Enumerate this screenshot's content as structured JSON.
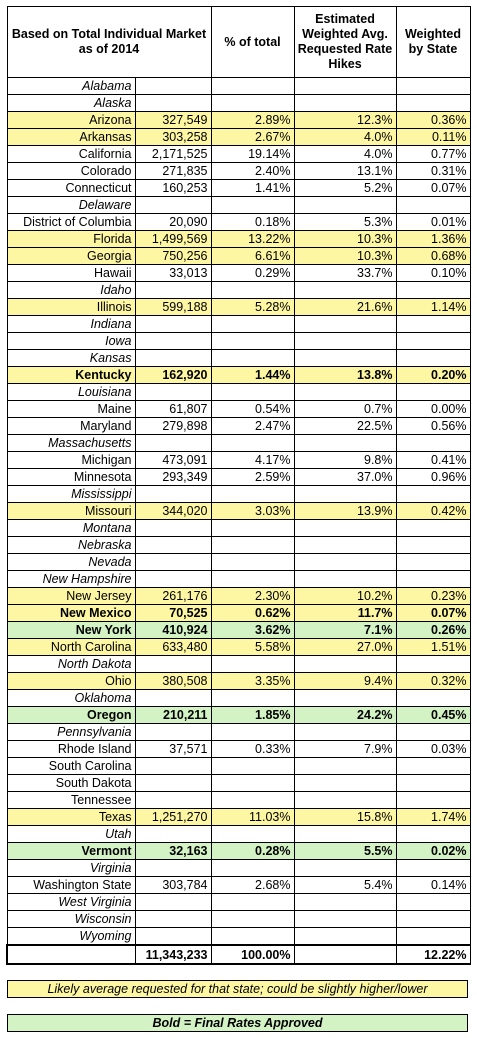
{
  "headers": {
    "state": "Based on Total Individual Market as of 2014",
    "pct_total": "% of total",
    "weighted_avg": "Estimated Weighted Avg. Requested Rate Hikes",
    "weighted_state": "Weighted by State"
  },
  "rows": [
    {
      "state": "Alabama",
      "market": "",
      "pct": "",
      "hike": "",
      "weighted": "",
      "style": "italic"
    },
    {
      "state": "Alaska",
      "market": "",
      "pct": "",
      "hike": "",
      "weighted": "",
      "style": "italic"
    },
    {
      "state": "Arizona",
      "market": "327,549",
      "pct": "2.89%",
      "hike": "12.3%",
      "weighted": "0.36%",
      "style": "yellow"
    },
    {
      "state": "Arkansas",
      "market": "303,258",
      "pct": "2.67%",
      "hike": "4.0%",
      "weighted": "0.11%",
      "style": "yellow"
    },
    {
      "state": "California",
      "market": "2,171,525",
      "pct": "19.14%",
      "hike": "4.0%",
      "weighted": "0.77%",
      "style": ""
    },
    {
      "state": "Colorado",
      "market": "271,835",
      "pct": "2.40%",
      "hike": "13.1%",
      "weighted": "0.31%",
      "style": ""
    },
    {
      "state": "Connecticut",
      "market": "160,253",
      "pct": "1.41%",
      "hike": "5.2%",
      "weighted": "0.07%",
      "style": ""
    },
    {
      "state": "Delaware",
      "market": "",
      "pct": "",
      "hike": "",
      "weighted": "",
      "style": "italic"
    },
    {
      "state": "District of Columbia",
      "market": "20,090",
      "pct": "0.18%",
      "hike": "5.3%",
      "weighted": "0.01%",
      "style": ""
    },
    {
      "state": "Florida",
      "market": "1,499,569",
      "pct": "13.22%",
      "hike": "10.3%",
      "weighted": "1.36%",
      "style": "yellow"
    },
    {
      "state": "Georgia",
      "market": "750,256",
      "pct": "6.61%",
      "hike": "10.3%",
      "weighted": "0.68%",
      "style": "yellow"
    },
    {
      "state": "Hawaii",
      "market": "33,013",
      "pct": "0.29%",
      "hike": "33.7%",
      "weighted": "0.10%",
      "style": ""
    },
    {
      "state": "Idaho",
      "market": "",
      "pct": "",
      "hike": "",
      "weighted": "",
      "style": "italic"
    },
    {
      "state": "Illinois",
      "market": "599,188",
      "pct": "5.28%",
      "hike": "21.6%",
      "weighted": "1.14%",
      "style": "yellow"
    },
    {
      "state": "Indiana",
      "market": "",
      "pct": "",
      "hike": "",
      "weighted": "",
      "style": "italic"
    },
    {
      "state": "Iowa",
      "market": "",
      "pct": "",
      "hike": "",
      "weighted": "",
      "style": "italic"
    },
    {
      "state": "Kansas",
      "market": "",
      "pct": "",
      "hike": "",
      "weighted": "",
      "style": "italic"
    },
    {
      "state": "Kentucky",
      "market": "162,920",
      "pct": "1.44%",
      "hike": "13.8%",
      "weighted": "0.20%",
      "style": "yellow bold"
    },
    {
      "state": "Louisiana",
      "market": "",
      "pct": "",
      "hike": "",
      "weighted": "",
      "style": "italic"
    },
    {
      "state": "Maine",
      "market": "61,807",
      "pct": "0.54%",
      "hike": "0.7%",
      "weighted": "0.00%",
      "style": ""
    },
    {
      "state": "Maryland",
      "market": "279,898",
      "pct": "2.47%",
      "hike": "22.5%",
      "weighted": "0.56%",
      "style": ""
    },
    {
      "state": "Massachusetts",
      "market": "",
      "pct": "",
      "hike": "",
      "weighted": "",
      "style": "italic"
    },
    {
      "state": "Michigan",
      "market": "473,091",
      "pct": "4.17%",
      "hike": "9.8%",
      "weighted": "0.41%",
      "style": ""
    },
    {
      "state": "Minnesota",
      "market": "293,349",
      "pct": "2.59%",
      "hike": "37.0%",
      "weighted": "0.96%",
      "style": ""
    },
    {
      "state": "Mississippi",
      "market": "",
      "pct": "",
      "hike": "",
      "weighted": "",
      "style": "italic"
    },
    {
      "state": "Missouri",
      "market": "344,020",
      "pct": "3.03%",
      "hike": "13.9%",
      "weighted": "0.42%",
      "style": "yellow"
    },
    {
      "state": "Montana",
      "market": "",
      "pct": "",
      "hike": "",
      "weighted": "",
      "style": "italic"
    },
    {
      "state": "Nebraska",
      "market": "",
      "pct": "",
      "hike": "",
      "weighted": "",
      "style": "italic"
    },
    {
      "state": "Nevada",
      "market": "",
      "pct": "",
      "hike": "",
      "weighted": "",
      "style": "italic"
    },
    {
      "state": "New Hampshire",
      "market": "",
      "pct": "",
      "hike": "",
      "weighted": "",
      "style": "italic"
    },
    {
      "state": "New Jersey",
      "market": "261,176",
      "pct": "2.30%",
      "hike": "10.2%",
      "weighted": "0.23%",
      "style": "yellow"
    },
    {
      "state": "New Mexico",
      "market": "70,525",
      "pct": "0.62%",
      "hike": "11.7%",
      "weighted": "0.07%",
      "style": "yellow bold"
    },
    {
      "state": "New York",
      "market": "410,924",
      "pct": "3.62%",
      "hike": "7.1%",
      "weighted": "0.26%",
      "style": "green bold"
    },
    {
      "state": "North Carolina",
      "market": "633,480",
      "pct": "5.58%",
      "hike": "27.0%",
      "weighted": "1.51%",
      "style": "yellow"
    },
    {
      "state": "North Dakota",
      "market": "",
      "pct": "",
      "hike": "",
      "weighted": "",
      "style": "italic"
    },
    {
      "state": "Ohio",
      "market": "380,508",
      "pct": "3.35%",
      "hike": "9.4%",
      "weighted": "0.32%",
      "style": "yellow"
    },
    {
      "state": "Oklahoma",
      "market": "",
      "pct": "",
      "hike": "",
      "weighted": "",
      "style": "italic"
    },
    {
      "state": "Oregon",
      "market": "210,211",
      "pct": "1.85%",
      "hike": "24.2%",
      "weighted": "0.45%",
      "style": "green bold"
    },
    {
      "state": "Pennsylvania",
      "market": "",
      "pct": "",
      "hike": "",
      "weighted": "",
      "style": "italic"
    },
    {
      "state": "Rhode Island",
      "market": "37,571",
      "pct": "0.33%",
      "hike": "7.9%",
      "weighted": "0.03%",
      "style": ""
    },
    {
      "state": "South Carolina",
      "market": "",
      "pct": "",
      "hike": "",
      "weighted": "",
      "style": ""
    },
    {
      "state": "South Dakota",
      "market": "",
      "pct": "",
      "hike": "",
      "weighted": "",
      "style": ""
    },
    {
      "state": "Tennessee",
      "market": "",
      "pct": "",
      "hike": "",
      "weighted": "",
      "style": ""
    },
    {
      "state": "Texas",
      "market": "1,251,270",
      "pct": "11.03%",
      "hike": "15.8%",
      "weighted": "1.74%",
      "style": "yellow"
    },
    {
      "state": "Utah",
      "market": "",
      "pct": "",
      "hike": "",
      "weighted": "",
      "style": "italic"
    },
    {
      "state": "Vermont",
      "market": "32,163",
      "pct": "0.28%",
      "hike": "5.5%",
      "weighted": "0.02%",
      "style": "green bold"
    },
    {
      "state": "Virginia",
      "market": "",
      "pct": "",
      "hike": "",
      "weighted": "",
      "style": "italic"
    },
    {
      "state": "Washington State",
      "market": "303,784",
      "pct": "2.68%",
      "hike": "5.4%",
      "weighted": "0.14%",
      "style": ""
    },
    {
      "state": "West Virginia",
      "market": "",
      "pct": "",
      "hike": "",
      "weighted": "",
      "style": "italic"
    },
    {
      "state": "Wisconsin",
      "market": "",
      "pct": "",
      "hike": "",
      "weighted": "",
      "style": "italic"
    },
    {
      "state": "Wyoming",
      "market": "",
      "pct": "",
      "hike": "",
      "weighted": "",
      "style": "italic"
    }
  ],
  "totals": {
    "market": "11,343,233",
    "pct": "100.00%",
    "weighted": "12.22%"
  },
  "legend": {
    "yellow": "Likely average requested for that state; could be slightly higher/lower",
    "green": "Bold = Final Rates Approved"
  },
  "colors": {
    "yellow_fill": "#fdf6a3",
    "green_fill": "#d4f3c5"
  }
}
